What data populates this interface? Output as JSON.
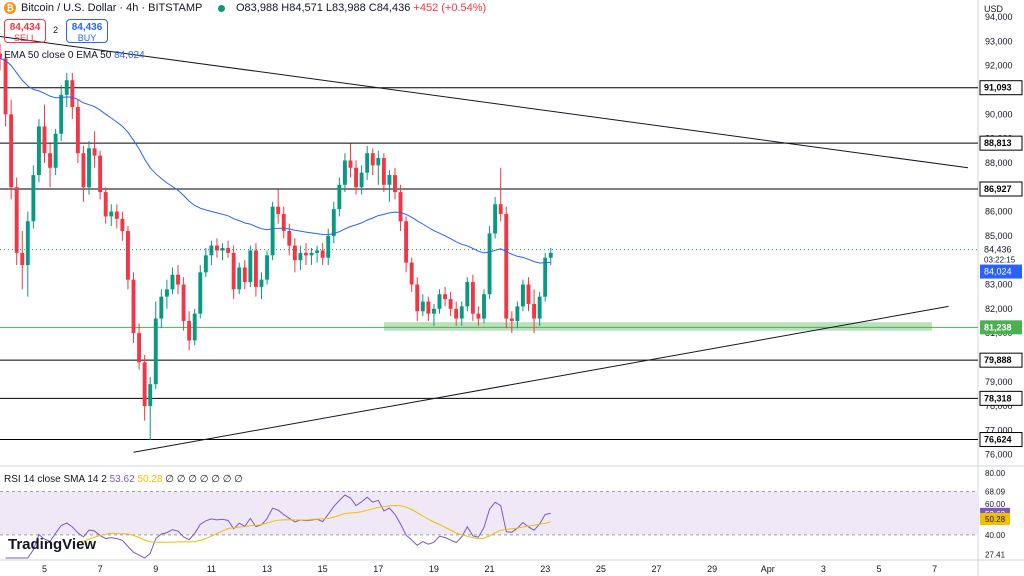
{
  "header": {
    "coin_icon": "bitcoin-icon",
    "symbol": "Bitcoin / U.S. Dollar · 4h · BITSTAMP",
    "open": "O83,988",
    "high": "H84,571",
    "low": "L83,988",
    "close": "C84,436",
    "change": "+452 (+0.54%)"
  },
  "trade": {
    "sell_price": "84,434",
    "sell_label": "SELL",
    "spread": "2",
    "buy_price": "84,436",
    "buy_label": "BUY"
  },
  "ema_legend": {
    "label": "EMA 50 close 0 EMA 50",
    "value": "84,024"
  },
  "rsi_legend": {
    "label": "RSI 14 close SMA 14 2",
    "rsi": "53.62",
    "sma": "50.28",
    "rest": "∅ ∅ ∅ ∅ ∅ ∅ ∅"
  },
  "branding": "TradingView",
  "currency": "USD",
  "colors": {
    "up": "#089981",
    "down": "#f23645",
    "ema": "#2962ff",
    "rsi": "#7e57c2",
    "rsi_sma": "#f0c000",
    "support_zone": "#a5d6a7"
  },
  "chart_data": {
    "type": "candlestick",
    "interval": "4h",
    "y_axis": {
      "ylim": [
        75700,
        94700
      ],
      "ticks": [
        94000,
        93000,
        92000,
        91000,
        90000,
        89000,
        88000,
        87000,
        86000,
        85000,
        84000,
        83000,
        82000,
        81000,
        80000,
        79000,
        78000,
        77000,
        76000
      ],
      "tick_labels": [
        "94,000",
        "93,000",
        "92,000",
        "91,000",
        "90,000",
        "89,000",
        "88,000",
        "87,000",
        "86,000",
        "85,000",
        "84,000",
        "83,000",
        "82,000",
        "81,000",
        "80,000",
        "79,000",
        "78,000",
        "77,000",
        "76,000"
      ]
    },
    "x_axis": {
      "labels": [
        "5",
        "7",
        "9",
        "11",
        "13",
        "15",
        "17",
        "19",
        "21",
        "23",
        "25",
        "27",
        "29",
        "Apr",
        "3",
        "5",
        "7"
      ],
      "positions": [
        4,
        6,
        8,
        10,
        12,
        14,
        16,
        18,
        20,
        22,
        24,
        26,
        28,
        30,
        32,
        34,
        36
      ],
      "xlim": [
        2.4,
        37.2
      ]
    },
    "horizontal_levels": [
      {
        "value": 91093,
        "label": "91,093",
        "color": "#000000"
      },
      {
        "value": 88813,
        "label": "88,813",
        "color": "#000000"
      },
      {
        "value": 86927,
        "label": "86,927",
        "color": "#000000"
      },
      {
        "value": 81238,
        "label": "81,238",
        "color": "#4caf50"
      },
      {
        "value": 79888,
        "label": "79,888",
        "color": "#000000"
      },
      {
        "value": 78318,
        "label": "78,318",
        "color": "#000000"
      },
      {
        "value": 76624,
        "label": "76,624",
        "color": "#000000"
      }
    ],
    "support_zone": {
      "x0": 16.2,
      "x1": 35.9,
      "y0": 81100,
      "y1": 81450
    },
    "trendlines": [
      {
        "name": "descending-resistance",
        "x0": 2.4,
        "y0": 93200,
        "x1": 37.2,
        "y1": 87800
      },
      {
        "name": "ascending-support",
        "x0": 7.2,
        "y0": 76100,
        "x1": 36.5,
        "y1": 82100
      }
    ],
    "current_price": {
      "value": 84436,
      "label": "84,436",
      "countdown": "03:22:15"
    },
    "ema_tag": {
      "value": 84024,
      "label": "84,024"
    },
    "candles": [
      [
        2.4,
        92500,
        92900,
        91800,
        92300
      ],
      [
        2.6,
        92300,
        92500,
        89500,
        90000
      ],
      [
        2.8,
        90000,
        90600,
        86500,
        87000
      ],
      [
        3.0,
        87000,
        87400,
        83800,
        84300
      ],
      [
        3.2,
        84300,
        85200,
        82800,
        83800
      ],
      [
        3.4,
        83800,
        86000,
        82500,
        85600
      ],
      [
        3.6,
        85600,
        87900,
        85300,
        87500
      ],
      [
        3.8,
        87500,
        89800,
        87200,
        89500
      ],
      [
        4.0,
        89500,
        90400,
        88000,
        88400
      ],
      [
        4.2,
        88400,
        88800,
        87000,
        87800
      ],
      [
        4.4,
        87800,
        89400,
        87500,
        89200
      ],
      [
        4.6,
        89200,
        91200,
        88900,
        90800
      ],
      [
        4.8,
        90800,
        91700,
        90300,
        91400
      ],
      [
        5.0,
        91400,
        91700,
        89800,
        90300
      ],
      [
        5.2,
        90300,
        90600,
        88000,
        88400
      ],
      [
        5.4,
        88400,
        88700,
        86400,
        87000
      ],
      [
        5.6,
        87000,
        88900,
        86700,
        88600
      ],
      [
        5.8,
        88600,
        89300,
        87800,
        88300
      ],
      [
        6.0,
        88300,
        88500,
        86500,
        86800
      ],
      [
        6.2,
        86800,
        87000,
        85500,
        85800
      ],
      [
        6.4,
        85800,
        86300,
        85400,
        86000
      ],
      [
        6.6,
        86000,
        86300,
        85300,
        85700
      ],
      [
        6.8,
        85700,
        86000,
        84800,
        85200
      ],
      [
        7.0,
        85200,
        85400,
        82800,
        83200
      ],
      [
        7.2,
        83200,
        83500,
        80600,
        81000
      ],
      [
        7.4,
        81000,
        81400,
        79500,
        79800
      ],
      [
        7.6,
        79800,
        80100,
        77400,
        78000
      ],
      [
        7.8,
        78000,
        79200,
        76600,
        78900
      ],
      [
        8.0,
        78900,
        82300,
        78700,
        81600
      ],
      [
        8.2,
        81600,
        82800,
        81200,
        82500
      ],
      [
        8.4,
        82500,
        83200,
        82000,
        82800
      ],
      [
        8.6,
        82800,
        83700,
        82600,
        83400
      ],
      [
        8.8,
        83400,
        83800,
        82600,
        83000
      ],
      [
        9.0,
        83000,
        83300,
        81100,
        81500
      ],
      [
        9.2,
        81500,
        81900,
        80300,
        80700
      ],
      [
        9.4,
        80700,
        82000,
        80500,
        81800
      ],
      [
        9.6,
        81800,
        83800,
        81600,
        83500
      ],
      [
        9.8,
        83500,
        84500,
        83300,
        84200
      ],
      [
        10.0,
        84200,
        84800,
        83800,
        84600
      ],
      [
        10.2,
        84600,
        84900,
        84100,
        84400
      ],
      [
        10.4,
        84400,
        84700,
        84000,
        84500
      ],
      [
        10.6,
        84500,
        84800,
        84100,
        84300
      ],
      [
        10.8,
        84300,
        84600,
        82400,
        82800
      ],
      [
        11.0,
        82800,
        83900,
        82600,
        83700
      ],
      [
        11.2,
        83700,
        84000,
        82800,
        83100
      ],
      [
        11.4,
        83100,
        84600,
        82900,
        84400
      ],
      [
        11.6,
        84400,
        84700,
        82500,
        82900
      ],
      [
        11.8,
        82900,
        83500,
        82400,
        83200
      ],
      [
        12.0,
        83200,
        84400,
        83000,
        84200
      ],
      [
        12.2,
        84200,
        86400,
        84000,
        86200
      ],
      [
        12.4,
        86200,
        86900,
        85500,
        85900
      ],
      [
        12.6,
        85900,
        86200,
        84900,
        85200
      ],
      [
        12.8,
        85200,
        85500,
        84200,
        84600
      ],
      [
        13.0,
        84600,
        84900,
        83500,
        84000
      ],
      [
        13.2,
        84000,
        84600,
        83600,
        84300
      ],
      [
        13.4,
        84300,
        84700,
        83800,
        84200
      ],
      [
        13.6,
        84200,
        84500,
        83800,
        84300
      ],
      [
        13.8,
        84300,
        84600,
        83900,
        84400
      ],
      [
        14.0,
        84400,
        84700,
        83800,
        84100
      ],
      [
        14.2,
        84100,
        85300,
        83800,
        85000
      ],
      [
        14.4,
        85000,
        86400,
        84700,
        86100
      ],
      [
        14.6,
        86100,
        87400,
        85800,
        87100
      ],
      [
        14.8,
        87100,
        88400,
        86800,
        88100
      ],
      [
        15.0,
        88100,
        88800,
        87400,
        87800
      ],
      [
        15.2,
        87800,
        88100,
        86700,
        87000
      ],
      [
        15.4,
        87000,
        87900,
        86700,
        87600
      ],
      [
        15.6,
        87600,
        88700,
        87300,
        88400
      ],
      [
        15.8,
        88400,
        88600,
        87500,
        87900
      ],
      [
        16.0,
        87900,
        88500,
        87100,
        88200
      ],
      [
        16.2,
        88200,
        88400,
        86800,
        87100
      ],
      [
        16.4,
        87100,
        87700,
        86400,
        87500
      ],
      [
        16.6,
        87500,
        87800,
        86500,
        86800
      ],
      [
        16.8,
        86800,
        87100,
        85200,
        85600
      ],
      [
        17.0,
        85600,
        85800,
        83500,
        83900
      ],
      [
        17.2,
        83900,
        84100,
        82700,
        83000
      ],
      [
        17.4,
        83000,
        83300,
        81500,
        81900
      ],
      [
        17.6,
        81900,
        82600,
        81700,
        82300
      ],
      [
        17.8,
        82300,
        82500,
        81500,
        81800
      ],
      [
        18.0,
        81800,
        82200,
        81300,
        82000
      ],
      [
        18.2,
        82000,
        82800,
        81800,
        82600
      ],
      [
        18.4,
        82600,
        82900,
        82100,
        82400
      ],
      [
        18.6,
        82400,
        82700,
        81700,
        82000
      ],
      [
        18.8,
        82000,
        82300,
        81300,
        81600
      ],
      [
        19.0,
        81600,
        82300,
        81300,
        82100
      ],
      [
        19.2,
        82100,
        83300,
        81900,
        83100
      ],
      [
        19.4,
        83100,
        83400,
        81500,
        81800
      ],
      [
        19.6,
        81800,
        82100,
        81300,
        81600
      ],
      [
        19.8,
        81600,
        82800,
        81400,
        82600
      ],
      [
        20.0,
        82600,
        85400,
        82400,
        85100
      ],
      [
        20.2,
        85100,
        86600,
        84900,
        86300
      ],
      [
        20.4,
        86300,
        87800,
        85600,
        85900
      ],
      [
        20.6,
        85900,
        86200,
        81200,
        81600
      ],
      [
        20.8,
        81600,
        81900,
        81000,
        81500
      ],
      [
        21.0,
        81500,
        82300,
        81200,
        82100
      ],
      [
        21.2,
        82100,
        83200,
        81900,
        83000
      ],
      [
        21.4,
        83000,
        83300,
        81900,
        82200
      ],
      [
        21.6,
        82200,
        82800,
        81000,
        81600
      ],
      [
        21.8,
        81600,
        82700,
        81300,
        82500
      ],
      [
        22.0,
        82500,
        84300,
        82300,
        84100
      ],
      [
        22.2,
        84100,
        84500,
        83800,
        84300
      ]
    ],
    "rsi_panel": {
      "ylim": [
        25,
        82
      ],
      "ticks": [
        80,
        68.09,
        60,
        53.62,
        50.28,
        40,
        27.41
      ],
      "tick_labels": [
        "80.00",
        "68.09",
        "60.00",
        "53.62",
        "50.28",
        "40.00",
        "27.41"
      ],
      "band": [
        40,
        68.09
      ],
      "rsi_value": 53.62,
      "sma_value": 50.28
    }
  }
}
